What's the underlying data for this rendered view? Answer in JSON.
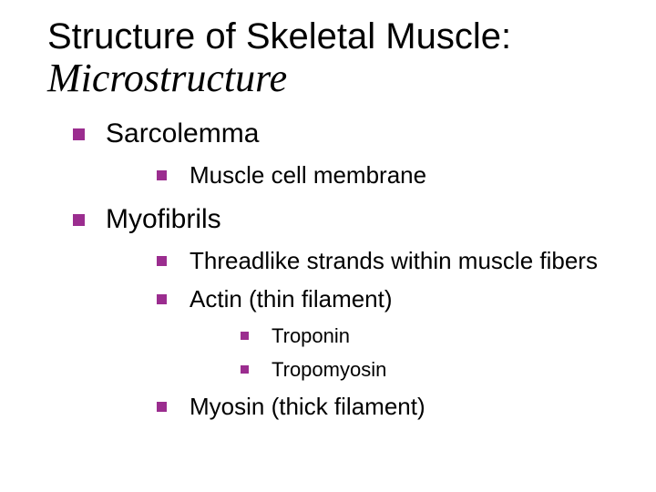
{
  "colors": {
    "bullet": "#9b2d8f",
    "text": "#000000",
    "background": "#ffffff"
  },
  "title": {
    "main": "Structure of Skeletal Muscle:",
    "sub": "Microstructure",
    "main_fontsize": 40,
    "sub_fontsize": 44,
    "sub_italic": true
  },
  "bullets": {
    "lvl1_size": 13,
    "lvl2_size": 11,
    "lvl3_size": 9,
    "shape": "square"
  },
  "fontsizes": {
    "lvl1": 30,
    "lvl2": 26,
    "lvl3": 22
  },
  "items": [
    {
      "label": "Sarcolemma",
      "children": [
        {
          "label": "Muscle cell membrane"
        }
      ]
    },
    {
      "label": "Myofibrils",
      "children": [
        {
          "label": "Threadlike strands within muscle fibers"
        },
        {
          "label": "Actin (thin filament)",
          "children": [
            {
              "label": "Troponin"
            },
            {
              "label": "Tropomyosin"
            }
          ]
        },
        {
          "label": "Myosin (thick filament)"
        }
      ]
    }
  ]
}
